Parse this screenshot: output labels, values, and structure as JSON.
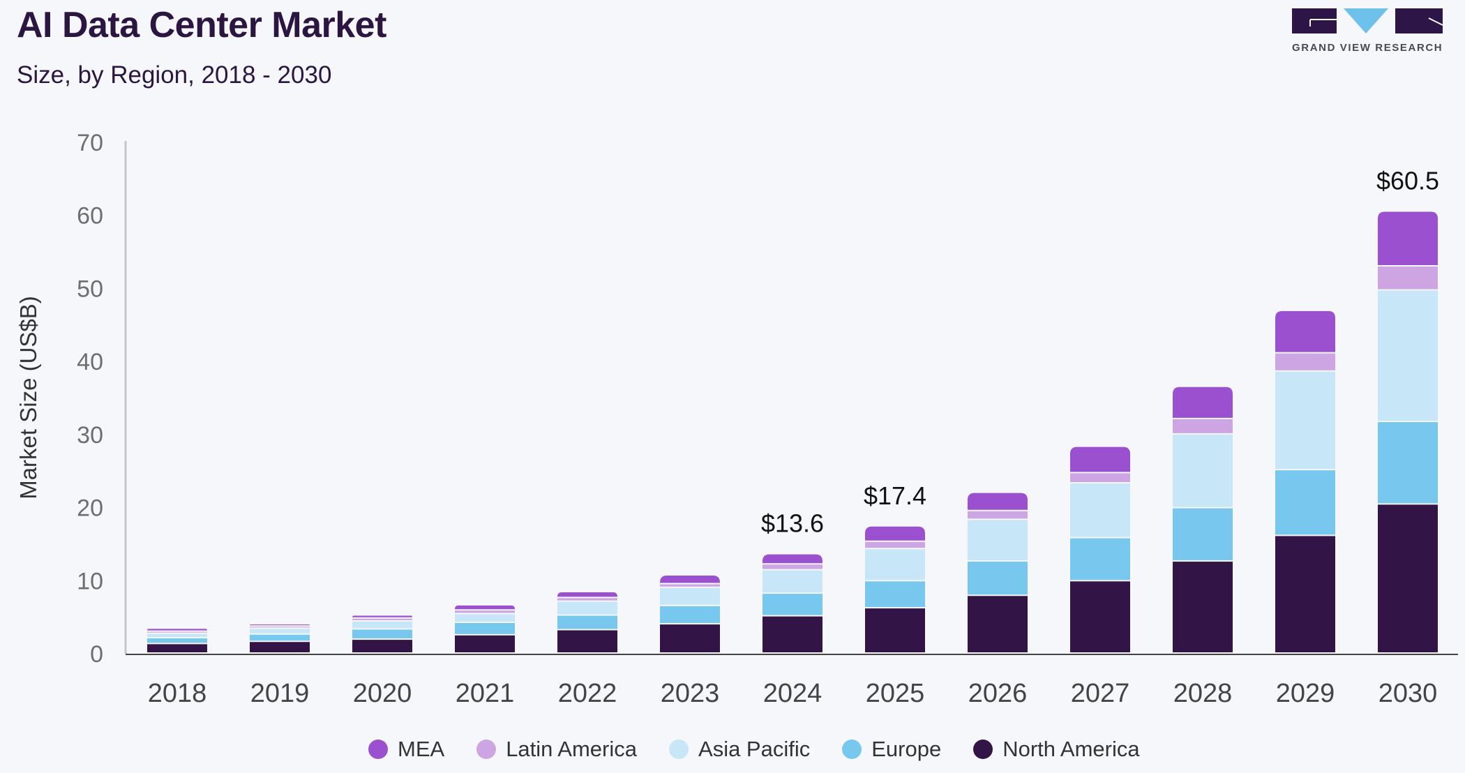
{
  "header": {
    "title": "AI Data Center Market",
    "subtitle": "Size, by Region, 2018 - 2030"
  },
  "logo": {
    "text": "GRAND VIEW RESEARCH",
    "colors": {
      "dark": "#2e1548",
      "accent": "#6ec1ea"
    }
  },
  "chart_data": {
    "type": "bar",
    "stacked": true,
    "title": "AI Data Center Market",
    "subtitle": "Size, by Region, 2018 - 2030",
    "xlabel": "",
    "ylabel": "Market Size (US$B)",
    "ylim": [
      0,
      70
    ],
    "yticks": [
      0,
      10,
      20,
      30,
      40,
      50,
      60,
      70
    ],
    "grid": false,
    "legend_position": "bottom",
    "categories": [
      "2018",
      "2019",
      "2020",
      "2021",
      "2022",
      "2023",
      "2024",
      "2025",
      "2026",
      "2027",
      "2028",
      "2029",
      "2030"
    ],
    "series": [
      {
        "name": "North America",
        "color": "#321447",
        "values": [
          1.3,
          1.6,
          1.9,
          2.5,
          3.2,
          4.0,
          5.1,
          6.2,
          7.9,
          9.9,
          12.6,
          16.1,
          20.4
        ]
      },
      {
        "name": "Europe",
        "color": "#77c7ee",
        "values": [
          0.8,
          1.0,
          1.4,
          1.7,
          2.0,
          2.5,
          3.1,
          3.7,
          4.7,
          5.9,
          7.3,
          9.0,
          11.3
        ]
      },
      {
        "name": "Asia Pacific",
        "color": "#c7e7f8",
        "values": [
          0.6,
          0.8,
          1.1,
          1.2,
          1.9,
          2.5,
          3.2,
          4.4,
          5.7,
          7.5,
          10.1,
          13.5,
          18.0
        ]
      },
      {
        "name": "Latin America",
        "color": "#cda5e3",
        "values": [
          0.3,
          0.3,
          0.4,
          0.5,
          0.5,
          0.5,
          0.8,
          1.0,
          1.2,
          1.4,
          2.1,
          2.5,
          3.3
        ]
      },
      {
        "name": "MEA",
        "color": "#9b51cf",
        "values": [
          0.4,
          0.3,
          0.4,
          0.7,
          0.8,
          1.2,
          1.4,
          2.1,
          2.5,
          3.6,
          4.4,
          5.8,
          7.5
        ]
      }
    ],
    "annotations": [
      {
        "category": "2024",
        "text": "$13.6"
      },
      {
        "category": "2025",
        "text": "$17.4"
      },
      {
        "category": "2030",
        "text": "$60.5"
      }
    ],
    "legend_order": [
      "MEA",
      "Latin America",
      "Asia Pacific",
      "Europe",
      "North America"
    ]
  }
}
